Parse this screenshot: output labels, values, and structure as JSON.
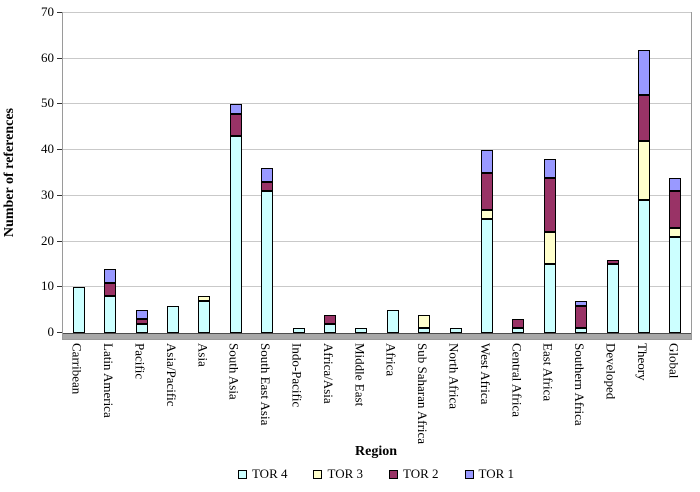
{
  "chart_data": {
    "type": "bar",
    "stacked": true,
    "title": "",
    "xlabel": "Region",
    "ylabel": "Number of references",
    "ylim": [
      0,
      70
    ],
    "ytick_step": 10,
    "grid": true,
    "legend_position": "bottom",
    "categories": [
      "Carribean",
      "Latin America",
      "Pacific",
      "Asia/Pacific",
      "Asia",
      "South Asia",
      "South East Asia",
      "Indo-Pacific",
      "Africa/Asia",
      "Middle East",
      "Africa",
      "Sub Saharan Africa",
      "North Africa",
      "West Africa",
      "Central Africa",
      "East Africa",
      "Southern Africa",
      "Developed",
      "Theory",
      "Global"
    ],
    "series": [
      {
        "name": "TOR 4",
        "color": "#CCFFFF",
        "values": [
          10,
          8,
          2,
          6,
          7,
          43,
          31,
          1,
          2,
          1,
          5,
          1,
          1,
          25,
          1,
          15,
          1,
          15,
          29,
          21
        ]
      },
      {
        "name": "TOR 3",
        "color": "#FFFFCC",
        "values": [
          0,
          0,
          0,
          0,
          1,
          0,
          0,
          0,
          0,
          0,
          0,
          3,
          0,
          2,
          0,
          7,
          0,
          0,
          13,
          2
        ]
      },
      {
        "name": "TOR 2",
        "color": "#993366",
        "values": [
          0,
          3,
          1,
          0,
          0,
          5,
          2,
          0,
          2,
          0,
          0,
          0,
          0,
          8,
          2,
          12,
          5,
          1,
          10,
          8
        ]
      },
      {
        "name": "TOR 1",
        "color": "#9999FF",
        "values": [
          0,
          3,
          2,
          0,
          0,
          2,
          3,
          0,
          0,
          0,
          0,
          0,
          0,
          5,
          0,
          4,
          1,
          0,
          10,
          3
        ]
      }
    ],
    "yticks": [
      0,
      10,
      20,
      30,
      40,
      50,
      60,
      70
    ]
  }
}
